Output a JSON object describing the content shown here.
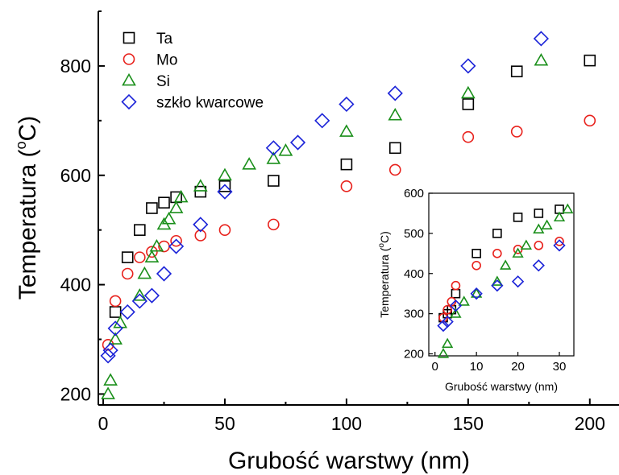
{
  "chart_data": [
    {
      "type": "scatter",
      "xlabel": "Grubość warstwy (nm)",
      "ylabel": "Temperatura (°C)",
      "ylabel_parts": {
        "pre": "Temperatura (",
        "sup": "o",
        "post": "C)"
      },
      "xlim": [
        -2,
        212
      ],
      "ylim": [
        180,
        900
      ],
      "xticks": [
        0,
        50,
        100,
        150,
        200
      ],
      "yticks": [
        200,
        400,
        600,
        800
      ],
      "legend": {
        "position": "top-left"
      },
      "series": [
        {
          "name": "Ta",
          "marker": "square",
          "color": "#000000",
          "x": [
            5,
            10,
            15,
            20,
            25,
            30,
            40,
            50,
            70,
            100,
            120,
            150,
            170,
            200
          ],
          "y": [
            350,
            450,
            500,
            540,
            550,
            560,
            570,
            580,
            590,
            620,
            650,
            730,
            790,
            810
          ]
        },
        {
          "name": "Mo",
          "marker": "circle",
          "color": "#e8211c",
          "x": [
            2,
            5,
            10,
            15,
            20,
            25,
            30,
            40,
            50,
            70,
            100,
            120,
            150,
            170,
            200
          ],
          "y": [
            290,
            370,
            420,
            450,
            460,
            470,
            480,
            490,
            500,
            510,
            580,
            610,
            670,
            680,
            700
          ]
        },
        {
          "name": "Si",
          "marker": "triangle",
          "color": "#1a8f1a",
          "x": [
            2,
            3,
            5,
            7,
            15,
            17,
            20,
            22,
            25,
            27,
            30,
            32,
            40,
            50,
            60,
            70,
            75,
            100,
            120,
            150,
            180
          ],
          "y": [
            200,
            225,
            300,
            330,
            380,
            420,
            450,
            470,
            510,
            520,
            540,
            560,
            580,
            600,
            620,
            630,
            645,
            680,
            710,
            750,
            810
          ]
        },
        {
          "name": "szkło kwarcowe",
          "marker": "diamond",
          "color": "#1a22d8",
          "x": [
            2,
            3,
            5,
            10,
            15,
            20,
            25,
            30,
            40,
            50,
            70,
            80,
            90,
            100,
            120,
            150,
            180
          ],
          "y": [
            270,
            280,
            320,
            350,
            370,
            380,
            420,
            470,
            510,
            570,
            650,
            660,
            700,
            730,
            750,
            800,
            850
          ]
        }
      ]
    },
    {
      "type": "scatter",
      "xlabel": "Grubość warstwy (nm)",
      "ylabel": "Temperatura (°C)",
      "ylabel_parts": {
        "pre": "Temperatura (",
        "sup": "o",
        "post": "C)"
      },
      "xlim": [
        -1.5,
        33.5
      ],
      "ylim": [
        195,
        600
      ],
      "xticks": [
        0,
        10,
        20,
        30
      ],
      "yticks": [
        200,
        300,
        400,
        500,
        600
      ],
      "series": [
        {
          "name": "Ta",
          "marker": "square",
          "color": "#000000",
          "x": [
            2,
            3,
            4,
            5,
            10,
            15,
            20,
            25,
            30
          ],
          "y": [
            290,
            300,
            310,
            350,
            450,
            500,
            540,
            550,
            560
          ]
        },
        {
          "name": "Mo",
          "marker": "circle",
          "color": "#e8211c",
          "x": [
            2,
            3,
            4,
            5,
            10,
            15,
            20,
            25,
            30
          ],
          "y": [
            290,
            310,
            330,
            370,
            420,
            450,
            460,
            470,
            480
          ]
        },
        {
          "name": "Si",
          "marker": "triangle",
          "color": "#1a8f1a",
          "x": [
            2,
            3,
            5,
            7,
            10,
            15,
            17,
            20,
            22,
            25,
            27,
            30,
            32
          ],
          "y": [
            200,
            225,
            300,
            330,
            350,
            380,
            420,
            450,
            470,
            510,
            520,
            540,
            560
          ]
        },
        {
          "name": "szkło kwarcowe",
          "marker": "diamond",
          "color": "#1a22d8",
          "x": [
            2,
            3,
            5,
            10,
            15,
            20,
            25,
            30
          ],
          "y": [
            270,
            280,
            320,
            350,
            370,
            380,
            420,
            470
          ]
        }
      ]
    }
  ]
}
